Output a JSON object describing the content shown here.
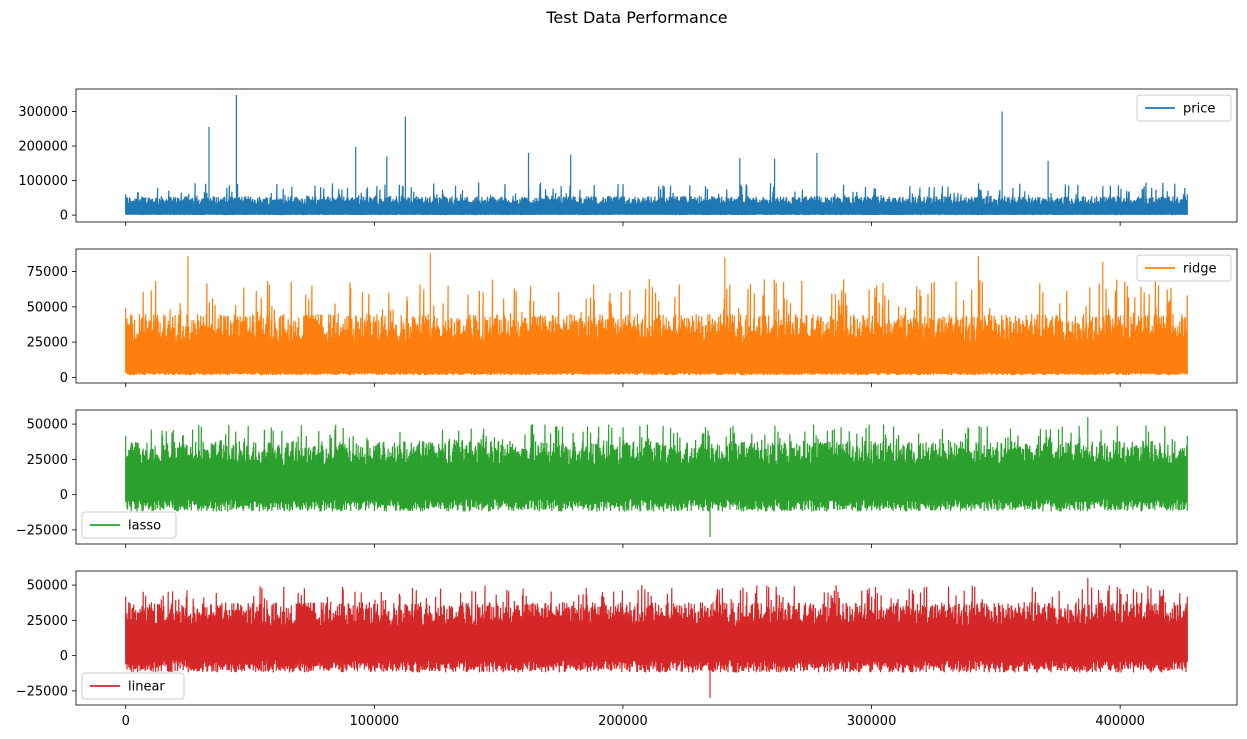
{
  "chart_data": {
    "type": "line",
    "title": "Test Data Performance",
    "sharex": true,
    "xlim": [
      -20000,
      447000
    ],
    "x_ticks": [
      0,
      100000,
      200000,
      300000,
      400000
    ],
    "x_tick_labels": [
      "0",
      "100000",
      "200000",
      "300000",
      "400000"
    ],
    "x_range": [
      0,
      427000
    ],
    "subplots": [
      {
        "name": "price",
        "color": "#1f77b4",
        "legend_position": "upper-right",
        "ylim": [
          -20000,
          365000
        ],
        "y_ticks": [
          0,
          100000,
          200000,
          300000
        ],
        "y_tick_labels": [
          "0",
          "100000",
          "200000",
          "300000"
        ],
        "band": {
          "min": 0,
          "lo_mean": 2000,
          "hi_mean": 55000,
          "hi_max": 95000
        },
        "spikes": [
          {
            "x": 33500,
            "y": 255000
          },
          {
            "x": 44500,
            "y": 348000
          },
          {
            "x": 92500,
            "y": 197000
          },
          {
            "x": 105000,
            "y": 170000
          },
          {
            "x": 112500,
            "y": 285000
          },
          {
            "x": 162000,
            "y": 180000
          },
          {
            "x": 179000,
            "y": 175000
          },
          {
            "x": 247000,
            "y": 165000
          },
          {
            "x": 261000,
            "y": 163000
          },
          {
            "x": 278000,
            "y": 180000
          },
          {
            "x": 352500,
            "y": 300000
          },
          {
            "x": 371000,
            "y": 157000
          }
        ]
      },
      {
        "name": "ridge",
        "color": "#ff7f0e",
        "legend_position": "upper-right",
        "ylim": [
          -4000,
          91000
        ],
        "y_ticks": [
          0,
          25000,
          50000,
          75000
        ],
        "y_tick_labels": [
          "0",
          "25000",
          "50000",
          "75000"
        ],
        "band": {
          "min": 1500,
          "lo_mean": 3500,
          "hi_mean": 45000,
          "hi_max": 70000
        },
        "spikes": [
          {
            "x": 25000,
            "y": 86000
          },
          {
            "x": 122500,
            "y": 88000
          },
          {
            "x": 241000,
            "y": 85000
          },
          {
            "x": 343000,
            "y": 86000
          },
          {
            "x": 393000,
            "y": 82000
          }
        ]
      },
      {
        "name": "lasso",
        "color": "#2ca02c",
        "legend_position": "lower-left",
        "ylim": [
          -35000,
          60000
        ],
        "y_ticks": [
          -25000,
          0,
          25000,
          50000
        ],
        "y_tick_labels": [
          "−25000",
          "0",
          "25000",
          "50000"
        ],
        "band": {
          "min": -12000,
          "lo_mean": -3000,
          "hi_mean": 38000,
          "hi_max": 50000
        },
        "spikes": [
          {
            "x": 235000,
            "y": -30000
          },
          {
            "x": 387000,
            "y": 55000
          }
        ]
      },
      {
        "name": "linear",
        "color": "#d62728",
        "legend_position": "lower-left",
        "ylim": [
          -35000,
          60000
        ],
        "y_ticks": [
          -25000,
          0,
          25000,
          50000
        ],
        "y_tick_labels": [
          "−25000",
          "0",
          "25000",
          "50000"
        ],
        "band": {
          "min": -12000,
          "lo_mean": -3000,
          "hi_mean": 38000,
          "hi_max": 50000
        },
        "spikes": [
          {
            "x": 235000,
            "y": -30000
          },
          {
            "x": 387000,
            "y": 55000
          }
        ]
      }
    ]
  }
}
